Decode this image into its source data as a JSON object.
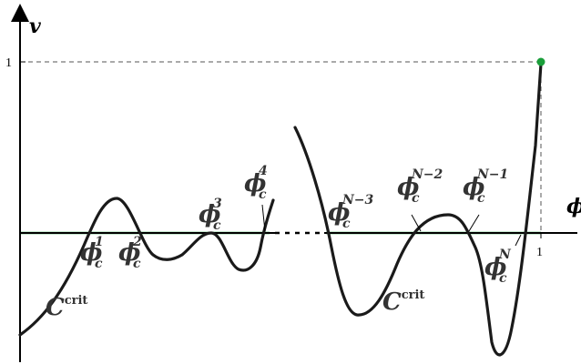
{
  "axes": {
    "y_label": "v",
    "x_label": "ϕ",
    "y_tick_one": "1",
    "x_tick_one": "1"
  },
  "curve_labels": [
    {
      "main": "C",
      "sup": "crit"
    },
    {
      "main": "C",
      "sup": "crit"
    }
  ],
  "crossing_labels": [
    {
      "main": "ϕ",
      "sub": "c",
      "sup": "1"
    },
    {
      "main": "ϕ",
      "sub": "c",
      "sup": "2"
    },
    {
      "main": "ϕ",
      "sub": "c",
      "sup": "3"
    },
    {
      "main": "ϕ",
      "sub": "c",
      "sup": "4"
    },
    {
      "main": "ϕ",
      "sub": "c",
      "sup": "N−3"
    },
    {
      "main": "ϕ",
      "sub": "c",
      "sup": "N−2"
    },
    {
      "main": "ϕ",
      "sub": "c",
      "sup": "N−1"
    },
    {
      "main": "ϕ",
      "sub": "c",
      "sup": "N"
    }
  ],
  "colors": {
    "curve": "#1a1a1a",
    "critical_line": "#1a9e3a",
    "endpoint": "#1a9e3a",
    "axis": "#000000",
    "guide": "#555555"
  }
}
